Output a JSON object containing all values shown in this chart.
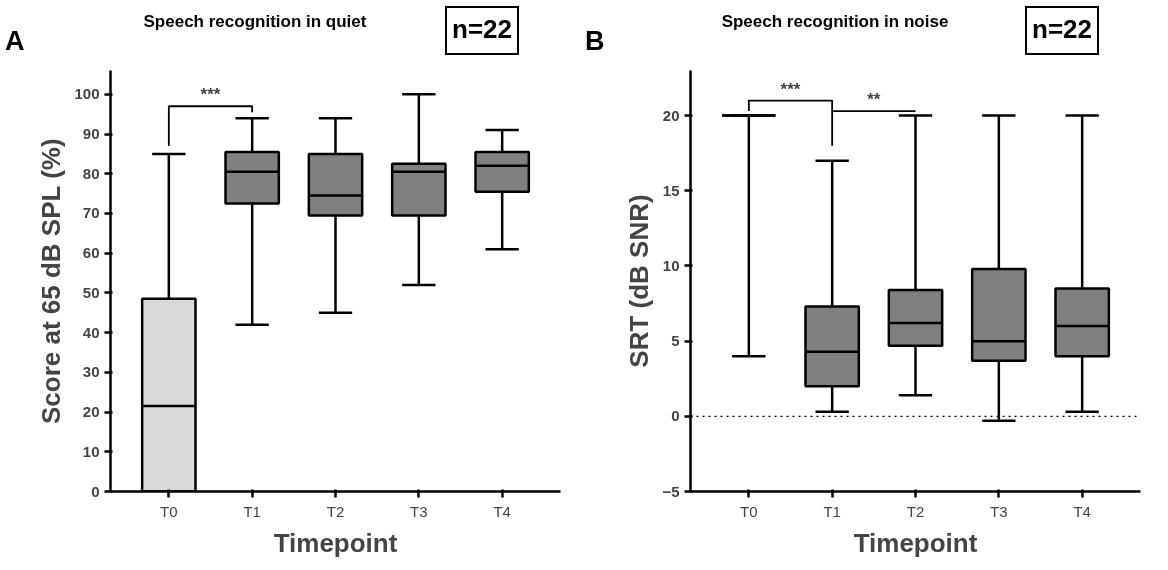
{
  "chart_data": [
    {
      "type": "box",
      "title": "Speech recognition in quiet",
      "xlabel": "Timepoint",
      "ylabel": "Score at 65 dB SPL (%)",
      "categories": [
        "T0",
        "T1",
        "T2",
        "T3",
        "T4"
      ],
      "colors": [
        "#d9d9d9",
        "#808080",
        "#808080",
        "#808080",
        "#808080"
      ],
      "boxes": [
        {
          "low": 0,
          "q1": 0,
          "median": 21.5,
          "q3": 48.5,
          "high": 85
        },
        {
          "low": 42,
          "q1": 72.5,
          "median": 80.5,
          "q3": 85.5,
          "high": 94
        },
        {
          "low": 45,
          "q1": 69.5,
          "median": 74.5,
          "q3": 85,
          "high": 94
        },
        {
          "low": 52,
          "q1": 69.5,
          "median": 80.5,
          "q3": 82.5,
          "high": 100
        },
        {
          "low": 61,
          "q1": 75.5,
          "median": 82,
          "q3": 85.5,
          "high": 91
        }
      ],
      "ylim": [
        0,
        106
      ],
      "yticks": [
        0,
        10,
        20,
        30,
        40,
        50,
        60,
        70,
        80,
        90,
        100
      ],
      "grid": false,
      "annotations": [
        "A",
        "n=22",
        "***"
      ]
    },
    {
      "type": "box",
      "title": "Speech recognition in noise",
      "xlabel": "Timepoint",
      "ylabel": "SRT (dB SNR)",
      "categories": [
        "T0",
        "T1",
        "T2",
        "T3",
        "T4"
      ],
      "colors": [
        "#000000",
        "#808080",
        "#808080",
        "#808080",
        "#808080"
      ],
      "boxes": [
        {
          "low": 4,
          "q1": 20,
          "median": 20,
          "q3": 20,
          "high": 20
        },
        {
          "low": 0.3,
          "q1": 2,
          "median": 4.3,
          "q3": 7.3,
          "high": 17
        },
        {
          "low": 1.4,
          "q1": 4.7,
          "median": 6.2,
          "q3": 8.4,
          "high": 20
        },
        {
          "low": -0.3,
          "q1": 3.7,
          "median": 5,
          "q3": 9.8,
          "high": 20
        },
        {
          "low": 0.3,
          "q1": 4,
          "median": 6,
          "q3": 8.5,
          "high": 20
        }
      ],
      "ylim": [
        -5,
        23
      ],
      "yticks": [
        -5,
        0,
        5,
        10,
        15,
        20
      ],
      "grid": false,
      "ref_lines": [
        {
          "axis": "y",
          "value": 0,
          "line_style": "dotted",
          "color": "#000000"
        }
      ],
      "annotations": [
        "B",
        "n=22",
        "***",
        "**"
      ]
    }
  ]
}
